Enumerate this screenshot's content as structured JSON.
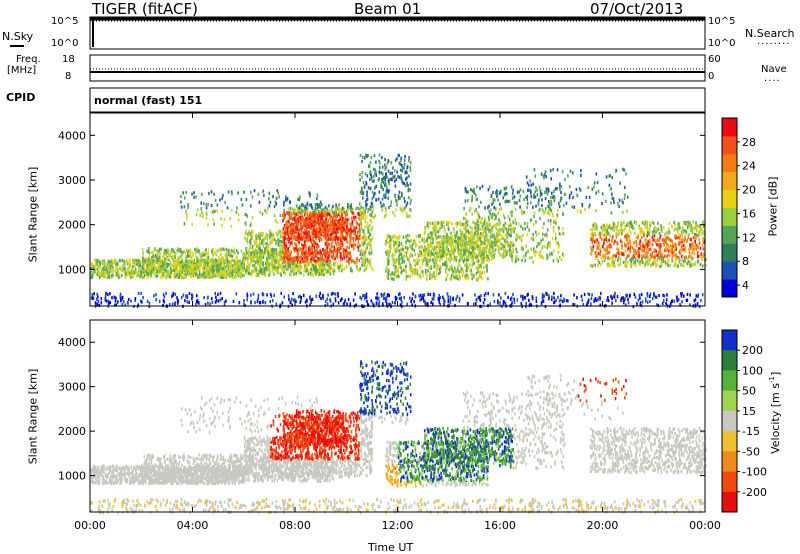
{
  "header": {
    "title": "TIGER (fitACF)",
    "beam": "Beam 01",
    "date": "07/Oct/2013"
  },
  "strip_panels": {
    "nsky": {
      "label": "N.Sky",
      "left_ticks": [
        "10^5",
        "10^0"
      ],
      "right_ticks": [
        "10^5",
        "10^0"
      ],
      "right_label": "N.Search",
      "right_legend_dots": "........"
    },
    "freq": {
      "label_line1": "Freq.",
      "label_line2": "[MHz]",
      "left_ticks": [
        "18",
        "8"
      ],
      "right_ticks": [
        "60",
        "0"
      ],
      "right_label": "Nave",
      "right_legend_dots": "....",
      "freq_mhz": 9.5
    },
    "cpid": {
      "label": "CPID",
      "value": "normal (fast) 151"
    }
  },
  "chart_data": [
    {
      "type": "heatmap",
      "name": "power",
      "ylabel": "Slant Range [km]",
      "ylim": [
        180,
        4500
      ],
      "yticks": [
        "1000",
        "2000",
        "3000",
        "4000"
      ],
      "colorbar": {
        "label": "Power [dB]",
        "ticks": [
          "28",
          "24",
          "20",
          "16",
          "12",
          "8",
          "4"
        ],
        "range": [
          0,
          30
        ],
        "colors": [
          "#0000d8",
          "#1c4fb8",
          "#2f7f5a",
          "#58a456",
          "#9ccf3f",
          "#e6d214",
          "#f2a91a",
          "#f47a14",
          "#f0501b",
          "#e80c14"
        ]
      }
    },
    {
      "type": "heatmap",
      "name": "velocity",
      "ylabel": "Slant Range [km]",
      "ylim": [
        180,
        4500
      ],
      "yticks": [
        "1000",
        "2000",
        "3000",
        "4000"
      ],
      "xlabel": "Time UT",
      "xticks": [
        "00:00",
        "04:00",
        "08:00",
        "12:00",
        "16:00",
        "20:00",
        "00:00"
      ],
      "colorbar": {
        "label": "Velocity [m s",
        "label_sup": "-1",
        "label_end": "]",
        "ticks": [
          "200",
          "100",
          "50",
          "15",
          "-15",
          "-50",
          "-100",
          "-200"
        ],
        "colors": [
          "#1430c8",
          "#2a8038",
          "#56b23a",
          "#9ed650",
          "#c8c8c0",
          "#f0c030",
          "#f08a18",
          "#f04a10",
          "#e80c0c"
        ]
      }
    }
  ]
}
